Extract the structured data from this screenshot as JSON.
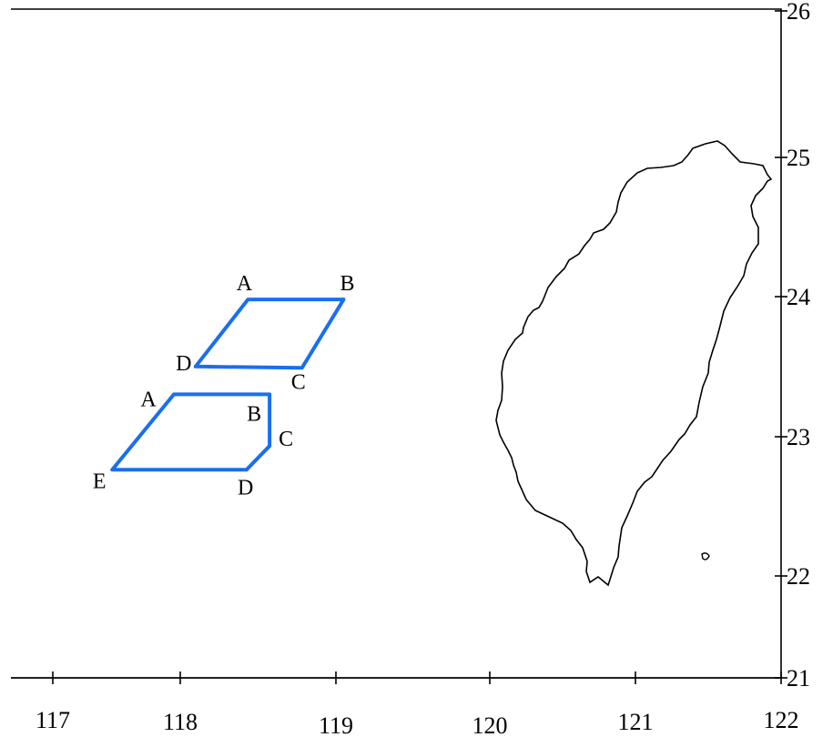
{
  "map": {
    "x_ticks": [
      "117",
      "118",
      "119",
      "120",
      "121",
      "122"
    ],
    "y_ticks": [
      "21",
      "22",
      "23",
      "24",
      "25",
      "26"
    ],
    "colors": {
      "zone": "#1a6ef0",
      "coast": "#000000",
      "frame": "#000000"
    }
  },
  "zones": [
    {
      "id": "upper",
      "vertices": [
        {
          "label": "A",
          "lon": 118.43,
          "lat": 23.98
        },
        {
          "label": "B",
          "lon": 119.05,
          "lat": 23.98
        },
        {
          "label": "C",
          "lon": 118.78,
          "lat": 23.49
        },
        {
          "label": "D",
          "lon": 118.09,
          "lat": 23.5
        }
      ]
    },
    {
      "id": "lower",
      "vertices": [
        {
          "label": "A",
          "lon": 117.95,
          "lat": 23.3
        },
        {
          "label": "B",
          "lon": 118.57,
          "lat": 23.3
        },
        {
          "label": "C",
          "lon": 118.57,
          "lat": 22.93
        },
        {
          "label": "D",
          "lon": 118.42,
          "lat": 22.76
        },
        {
          "label": "E",
          "lon": 117.55,
          "lat": 22.76
        }
      ]
    }
  ]
}
